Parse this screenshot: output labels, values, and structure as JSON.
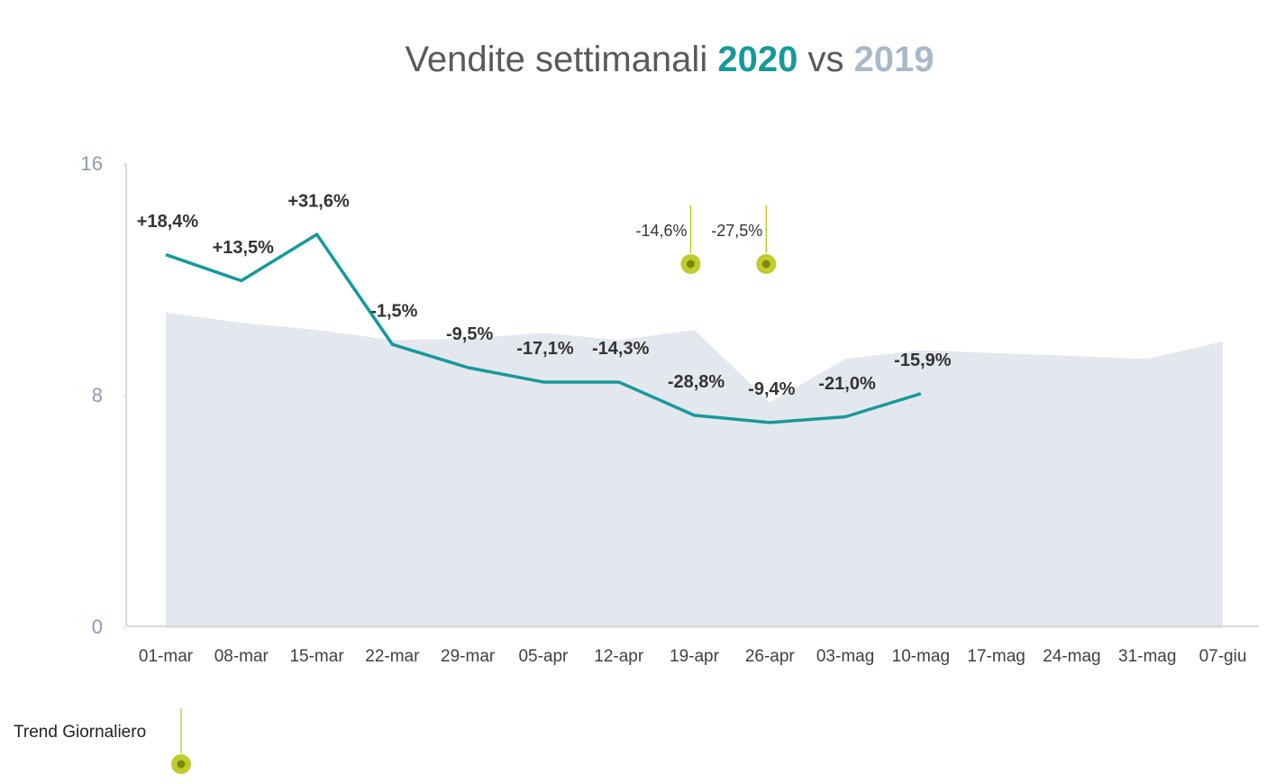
{
  "chart_data": {
    "type": "line",
    "title_prefix": "Vendite settimanali",
    "title_joiner": "vs",
    "categories": [
      "01-mar",
      "08-mar",
      "15-mar",
      "22-mar",
      "29-mar",
      "05-apr",
      "12-apr",
      "19-apr",
      "26-apr",
      "03-mag",
      "10-mag",
      "17-mag",
      "24-mag",
      "31-mag",
      "07-giu"
    ],
    "series": [
      {
        "name": "2020",
        "color": "#17999a",
        "style": "line",
        "values": [
          12.9,
          12.0,
          13.6,
          9.8,
          9.0,
          8.5,
          8.5,
          7.35,
          7.1,
          7.3,
          8.1,
          null,
          null,
          null,
          null
        ],
        "change_labels": [
          "+18,4%",
          "+13,5%",
          "+31,6%",
          "-1,5%",
          "-9,5%",
          "-17,1%",
          "-14,3%",
          "-28,8%",
          "-9,4%",
          "-21,0%",
          "-15,9%",
          null,
          null,
          null,
          null
        ]
      },
      {
        "name": "2019",
        "color": "#a9b9c9",
        "fill": "#e3e7ee",
        "style": "area",
        "values": [
          10.9,
          10.55,
          10.3,
          9.95,
          10.0,
          10.2,
          9.95,
          10.3,
          7.8,
          9.3,
          9.6,
          9.5,
          9.4,
          9.3,
          9.9
        ]
      }
    ],
    "daily_trend": {
      "label": "Trend Giornaliero",
      "color": "#b5c20a",
      "labels": [
        null,
        null,
        null,
        null,
        null,
        null,
        null,
        "-14,6%",
        "-27,5%",
        null,
        null,
        null,
        null,
        null,
        null
      ]
    },
    "ylim": [
      0,
      16
    ],
    "yticks": [
      0,
      8,
      16
    ],
    "grid": false
  }
}
